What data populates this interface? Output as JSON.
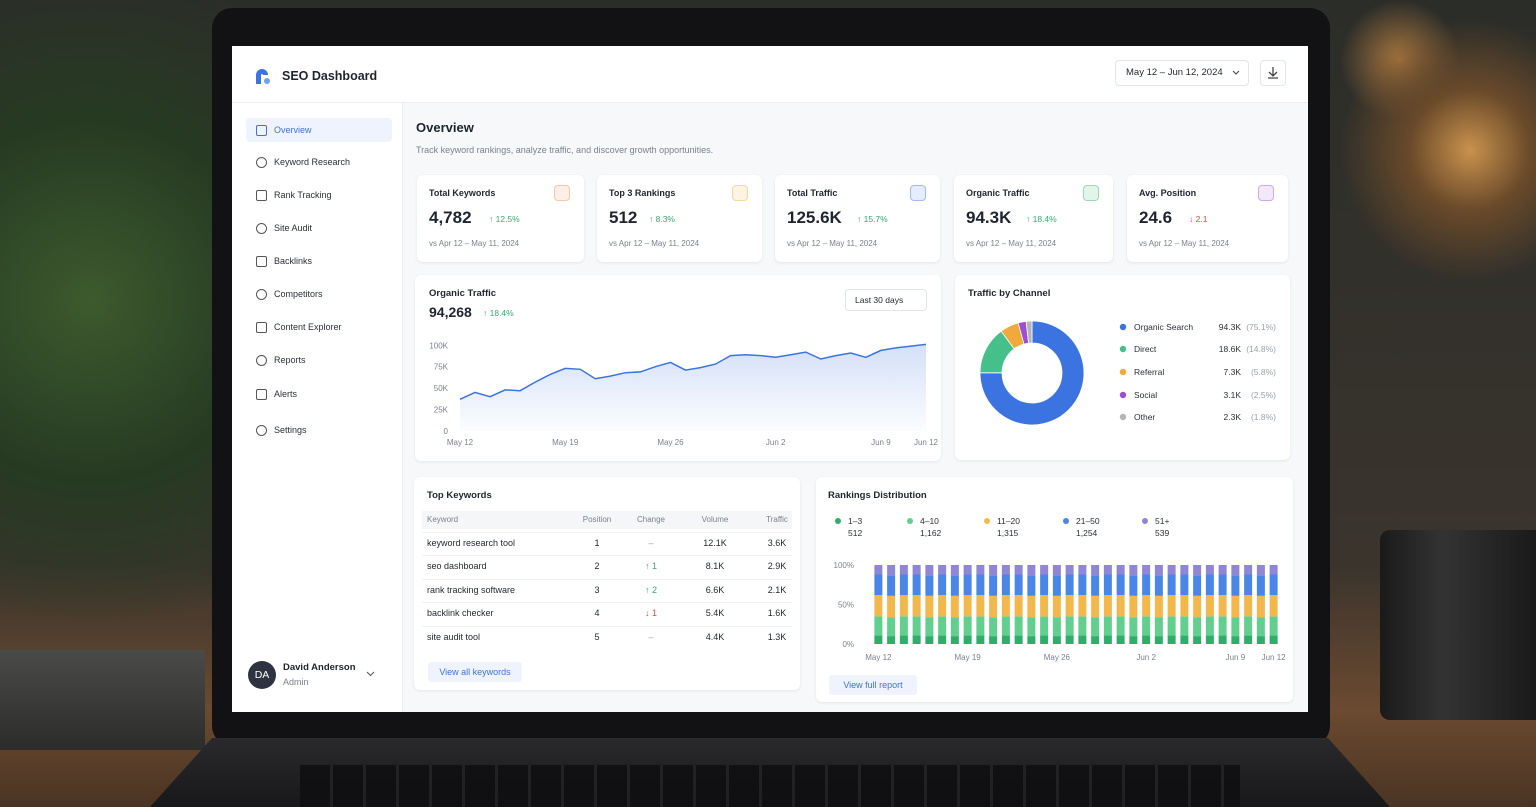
{
  "header": {
    "title": "SEO Dashboard",
    "date_range": "May 12 – Jun 12, 2024"
  },
  "sidebar": {
    "items": [
      "Overview",
      "Keyword Research",
      "Rank Tracking",
      "Site Audit",
      "Backlinks",
      "Competitors",
      "Content Explorer",
      "Reports",
      "Alerts",
      "Settings"
    ],
    "user": {
      "initials": "DA",
      "name": "David Anderson",
      "role": "Admin"
    }
  },
  "page": {
    "title": "Overview",
    "subtitle": "Track keyword rankings, analyze traffic, and discover growth opportunities."
  },
  "kpis": [
    {
      "label": "Total Keywords",
      "value": "4,782",
      "change": "↑ 12.5%",
      "period": "vs Apr 12 – May 11, 2024"
    },
    {
      "label": "Top 3 Rankings",
      "value": "512",
      "change": "↑ 8.3%",
      "period": "vs Apr 12 – May 11, 2024"
    },
    {
      "label": "Total Traffic",
      "value": "125.6K",
      "change": "↑ 15.7%",
      "period": "vs Apr 12 – May 11, 2024"
    },
    {
      "label": "Organic Traffic",
      "value": "94.3K",
      "change": "↑ 18.4%",
      "period": "vs Apr 12 – May 11, 2024"
    },
    {
      "label": "Avg. Position",
      "value": "24.6",
      "change": "↓ 2.1",
      "period": "vs Apr 12 – May 11, 2024"
    }
  ],
  "traffic_chart": {
    "type": "line",
    "title": "Organic Traffic",
    "total": "94,268",
    "change": "↑ 18.4%",
    "range": "Last 30 days",
    "categories": [
      "May 12",
      null,
      null,
      null,
      null,
      null,
      null,
      "May 19",
      null,
      null,
      null,
      null,
      null,
      null,
      "May 26",
      null,
      null,
      null,
      null,
      null,
      null,
      "Jun 2",
      null,
      null,
      null,
      null,
      null,
      null,
      "Jun 9",
      null,
      null,
      "Jun 12"
    ],
    "values": [
      37000,
      45000,
      40000,
      48000,
      47000,
      57000,
      66000,
      73000,
      72000,
      61000,
      64000,
      68000,
      69000,
      75000,
      80000,
      71000,
      74000,
      78000,
      88000,
      89000,
      88000,
      86000,
      89000,
      92000,
      84000,
      88000,
      91000,
      86000,
      94000,
      97000,
      99000,
      101000
    ],
    "color": "#3b73e0",
    "ylim": [
      0,
      105000
    ],
    "yticks": [
      0,
      {
        "value": 25000,
        "label": "25K"
      },
      {
        "value": 50000,
        "label": "50K"
      },
      {
        "value": 75000,
        "label": "75K"
      },
      {
        "value": 100000,
        "label": "100K"
      }
    ],
    "grid": false
  },
  "channels": {
    "type": "pie",
    "title": "Traffic by Channel",
    "categories": [
      "Organic Search",
      "Direct",
      "Referral",
      "Social",
      "Other"
    ],
    "traffic": [
      "94.3K",
      "18.6K",
      "7.3K",
      "3.1K",
      "2.3K"
    ],
    "values": [
      75.1,
      14.8,
      5.8,
      2.5,
      1.8
    ],
    "value_labels": [
      "(75.1%)",
      "(14.8%)",
      "(5.8%)",
      "(2.5%)",
      "(1.8%)"
    ],
    "colors": [
      "#3b73e0",
      "#45c08a",
      "#f0a93a",
      "#9b4fd1",
      "#b5b5b5"
    ]
  },
  "keywords": {
    "title": "Top Keywords",
    "columns": [
      "Keyword",
      "Position",
      "Change",
      "Volume",
      "Traffic"
    ],
    "rows": [
      [
        "keyword research tool",
        "1",
        "–",
        "12.1K",
        "3.6K"
      ],
      [
        "seo dashboard",
        "2",
        "↑ 1",
        "8.1K",
        "2.9K"
      ],
      [
        "rank tracking software",
        "3",
        "↑ 2",
        "6.6K",
        "2.1K"
      ],
      [
        "backlink checker",
        "4",
        "↓ 1",
        "5.4K",
        "1.6K"
      ],
      [
        "site audit tool",
        "5",
        "–",
        "4.4K",
        "1.3K"
      ]
    ],
    "link": "View all keywords"
  },
  "rankings": {
    "type": "bar",
    "stacked": true,
    "title": "Rankings Distribution",
    "categories": [
      "May 12",
      null,
      null,
      null,
      null,
      null,
      null,
      "May 19",
      null,
      null,
      null,
      null,
      null,
      null,
      "May 26",
      null,
      null,
      null,
      null,
      null,
      null,
      "Jun 2",
      null,
      null,
      null,
      null,
      null,
      null,
      "Jun 9",
      null,
      null,
      "Jun 12"
    ],
    "series": [
      {
        "name": "1–3",
        "total": "512",
        "color": "#2fae6b",
        "values": [
          11,
          10,
          11,
          11,
          10,
          11,
          10,
          11,
          11,
          10,
          11,
          11,
          10,
          11,
          10,
          11,
          11,
          10,
          11,
          11,
          10,
          11,
          10,
          11,
          11,
          10,
          11,
          11,
          10,
          11,
          10,
          11
        ]
      },
      {
        "name": "4–10",
        "total": "1,162",
        "color": "#62cf8f",
        "values": [
          24,
          24,
          24,
          24,
          24,
          24,
          24,
          24,
          24,
          24,
          24,
          24,
          24,
          24,
          24,
          24,
          24,
          24,
          24,
          24,
          24,
          24,
          24,
          24,
          24,
          24,
          24,
          24,
          24,
          24,
          24,
          24
        ]
      },
      {
        "name": "11–20",
        "total": "1,315",
        "color": "#f2b84b",
        "values": [
          27,
          27,
          27,
          27,
          27,
          27,
          27,
          27,
          27,
          27,
          27,
          27,
          27,
          27,
          27,
          27,
          27,
          27,
          27,
          27,
          27,
          27,
          27,
          27,
          27,
          27,
          27,
          27,
          27,
          27,
          27,
          27
        ]
      },
      {
        "name": "21–50",
        "total": "1,254",
        "color": "#4a86e8",
        "values": [
          26,
          26,
          26,
          26,
          26,
          26,
          26,
          26,
          26,
          26,
          26,
          26,
          26,
          26,
          26,
          26,
          26,
          26,
          26,
          26,
          26,
          26,
          26,
          26,
          26,
          26,
          26,
          26,
          26,
          26,
          26,
          26
        ]
      },
      {
        "name": "51+",
        "total": "539",
        "color": "#8f86d6",
        "values": [
          12,
          13,
          12,
          12,
          13,
          12,
          13,
          12,
          12,
          13,
          12,
          12,
          13,
          12,
          13,
          12,
          12,
          13,
          12,
          12,
          13,
          12,
          13,
          12,
          12,
          13,
          12,
          12,
          13,
          12,
          13,
          12
        ]
      }
    ],
    "ylim": [
      0,
      100
    ],
    "yticks": [
      {
        "value": 0,
        "label": "0%"
      },
      {
        "value": 50,
        "label": "50%"
      },
      {
        "value": 100,
        "label": "100%"
      }
    ],
    "link": "View full report"
  }
}
